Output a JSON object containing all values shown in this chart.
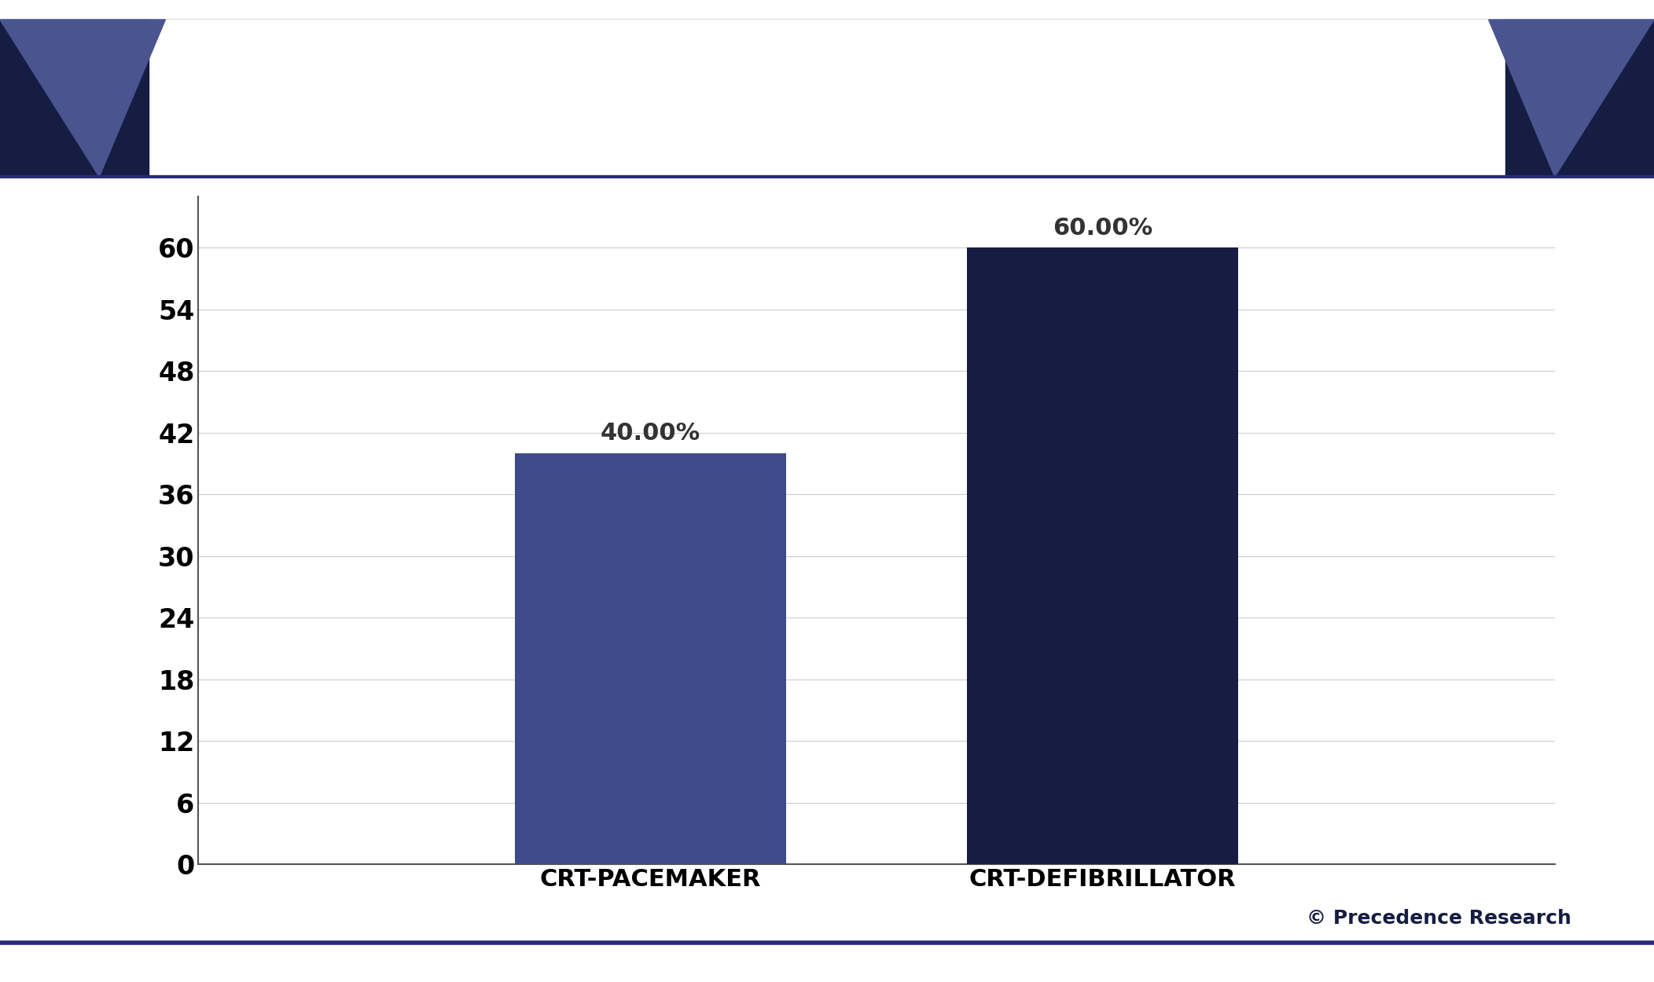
{
  "categories": [
    "CRT-PACEMAKER",
    "CRT-DEFIBRILLATOR"
  ],
  "values": [
    40.0,
    60.0
  ],
  "bar_colors": [
    "#3d4b8a",
    "#151d42"
  ],
  "yticks": [
    0,
    6,
    12,
    18,
    24,
    30,
    36,
    42,
    48,
    54,
    60
  ],
  "ylim": [
    0,
    65
  ],
  "value_labels": [
    "40.00%",
    "60.00%"
  ],
  "title_color": "#151d42",
  "tick_label_color": "#000000",
  "grid_color": "#cccccc",
  "background_color": "#ffffff",
  "watermark": "© Precedence Research",
  "watermark_color": "#151d42",
  "title_fontsize": 28,
  "tick_fontsize": 24,
  "label_fontsize": 22,
  "value_fontsize": 22,
  "bar_width": 0.18,
  "corner_dark": "#151d42",
  "corner_mid": "#4a5590",
  "header_line_color": "#2a2a7a",
  "bottom_line_color": "#2a2a7a"
}
